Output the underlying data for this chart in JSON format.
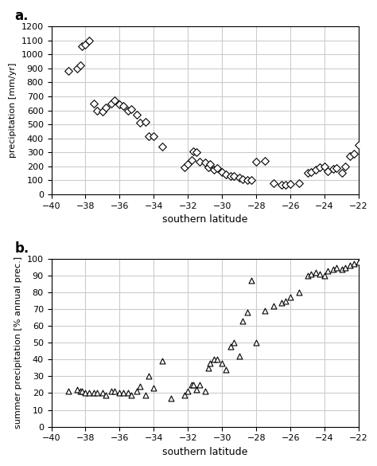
{
  "panel_a_x": [
    -39,
    -38.5,
    -38.3,
    -38.2,
    -38.0,
    -37.8,
    -37.5,
    -37.3,
    -37.0,
    -36.8,
    -36.5,
    -36.3,
    -36.0,
    -35.8,
    -35.5,
    -35.3,
    -35.0,
    -34.8,
    -34.5,
    -34.3,
    -34.0,
    -33.5,
    -32.2,
    -32.0,
    -31.8,
    -31.7,
    -31.5,
    -31.3,
    -31.0,
    -30.8,
    -30.7,
    -30.5,
    -30.3,
    -30.0,
    -29.8,
    -29.5,
    -29.3,
    -29.0,
    -28.8,
    -28.5,
    -28.3,
    -28.0,
    -27.5,
    -27.0,
    -26.5,
    -26.3,
    -26.0,
    -25.5,
    -25.0,
    -24.8,
    -24.5,
    -24.3,
    -24.0,
    -23.8,
    -23.5,
    -23.3,
    -23.0,
    -22.8,
    -22.5,
    -22.3,
    -22.0
  ],
  "panel_a_y": [
    880,
    900,
    920,
    1060,
    1070,
    1100,
    650,
    600,
    590,
    620,
    650,
    670,
    640,
    630,
    600,
    610,
    570,
    510,
    520,
    415,
    415,
    340,
    195,
    215,
    245,
    305,
    300,
    230,
    225,
    195,
    215,
    175,
    185,
    160,
    140,
    130,
    130,
    120,
    105,
    100,
    100,
    235,
    240,
    80,
    70,
    70,
    75,
    80,
    150,
    160,
    175,
    190,
    200,
    165,
    180,
    185,
    150,
    200,
    270,
    290,
    350
  ],
  "panel_b_x": [
    -39,
    -38.5,
    -38.3,
    -38.2,
    -38.0,
    -37.8,
    -37.5,
    -37.3,
    -37.0,
    -36.8,
    -36.5,
    -36.3,
    -36.0,
    -35.8,
    -35.5,
    -35.3,
    -35.0,
    -34.8,
    -34.5,
    -34.3,
    -34.0,
    -33.5,
    -33.0,
    -32.2,
    -32.0,
    -31.8,
    -31.7,
    -31.5,
    -31.3,
    -31.0,
    -30.8,
    -30.7,
    -30.5,
    -30.3,
    -30.0,
    -29.8,
    -29.5,
    -29.3,
    -29.0,
    -28.8,
    -28.5,
    -28.3,
    -28.0,
    -27.5,
    -27.0,
    -26.5,
    -26.3,
    -26.0,
    -25.5,
    -25.0,
    -24.8,
    -24.5,
    -24.3,
    -24.0,
    -23.8,
    -23.5,
    -23.3,
    -23.0,
    -22.8,
    -22.5,
    -22.3,
    -22.0
  ],
  "panel_b_y": [
    21,
    22,
    21,
    21,
    20,
    20,
    20,
    20,
    20,
    19,
    21,
    21,
    20,
    20,
    20,
    19,
    21,
    24,
    19,
    30,
    23,
    39,
    17,
    19,
    21,
    25,
    25,
    22,
    25,
    21,
    35,
    38,
    40,
    40,
    38,
    34,
    48,
    50,
    42,
    63,
    68,
    87,
    50,
    69,
    72,
    74,
    75,
    77,
    80,
    90,
    91,
    92,
    91,
    90,
    93,
    94,
    95,
    94,
    95,
    96,
    97,
    98
  ],
  "xlim": [
    -40,
    -22
  ],
  "xticks": [
    -40,
    -38,
    -36,
    -34,
    -32,
    -30,
    -28,
    -26,
    -24,
    -22
  ],
  "panel_a_ylim": [
    0,
    1200
  ],
  "panel_a_yticks": [
    0,
    100,
    200,
    300,
    400,
    500,
    600,
    700,
    800,
    900,
    1000,
    1100,
    1200
  ],
  "panel_b_ylim": [
    0,
    100
  ],
  "panel_b_yticks": [
    0,
    10,
    20,
    30,
    40,
    50,
    60,
    70,
    80,
    90,
    100
  ],
  "panel_a_ylabel": "precipitation [mm/yr]",
  "panel_b_ylabel": "summer precipitation [% annual prec.]",
  "xlabel": "southern latitude",
  "panel_a_label": "a.",
  "panel_b_label": "b.",
  "bg_color": "#ffffff",
  "marker_color": "#000000",
  "grid_color": "#cccccc",
  "marker_size_a": 7,
  "marker_size_b": 7
}
